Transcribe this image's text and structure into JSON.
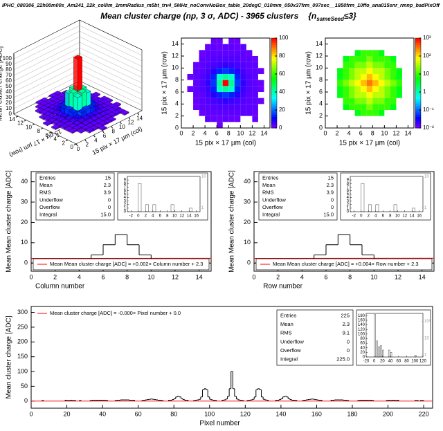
{
  "header": {
    "file": "IPHC_080306_22h00m00s_Am241_22k_collim_1mmRadius_m5bt_trv4_5MHz_noConvNoBox_table_20degC_010mm_050x37frm_097sec__1850frm_10ffo_ana015snr_rmnp_badPixOff",
    "title": "Mean cluster charge (np, 3 σ, ADC) - 3965 clusters",
    "note": "{n",
    "note_sub": "sameSeed",
    "note_end": "≤3}"
  },
  "chart_data": [
    {
      "type": "lego",
      "zlabel": "Mean cluster charge  [ADC]",
      "xlabel": "15 pix × 17 µm  (col)",
      "ylabel": "15 pix × 17 µm  (row)",
      "xlim": [
        0,
        15
      ],
      "ylim": [
        0,
        15
      ],
      "zlim": [
        0,
        110
      ],
      "xticks": [
        0,
        2,
        4,
        6,
        8,
        10,
        12,
        14
      ],
      "yticks": [
        0,
        2,
        4,
        6,
        8,
        10,
        12,
        14
      ],
      "zticks": [
        0,
        10,
        20,
        30,
        40,
        50,
        60,
        70,
        80,
        90,
        100
      ]
    },
    {
      "type": "heatmap",
      "xlabel": "15 pix × 17 µm  (col)",
      "ylabel": "15 pix × 17 µm  (row)",
      "xlim": [
        0,
        15
      ],
      "ylim": [
        0,
        15
      ],
      "xticks": [
        0,
        2,
        4,
        6,
        8,
        10,
        12,
        14
      ],
      "yticks": [
        0,
        2,
        4,
        6,
        8,
        10,
        12,
        14
      ],
      "zlim": [
        0,
        100
      ],
      "zticks": [
        0,
        20,
        40,
        60,
        80,
        100
      ],
      "zlog": false,
      "z": [
        [
          null,
          null,
          null,
          null,
          null,
          null,
          2,
          null,
          null,
          null,
          null,
          null,
          null,
          null,
          null
        ],
        [
          null,
          null,
          null,
          null,
          3,
          2,
          2,
          3,
          2,
          2,
          null,
          null,
          2,
          null,
          null
        ],
        [
          null,
          null,
          null,
          2,
          3,
          3,
          3,
          3,
          3,
          3,
          3,
          3,
          2,
          null,
          null
        ],
        [
          null,
          null,
          2,
          3,
          3,
          4,
          4,
          4,
          4,
          4,
          3,
          3,
          3,
          null,
          null
        ],
        [
          null,
          null,
          2,
          3,
          4,
          5,
          6,
          7,
          6,
          5,
          4,
          3,
          3,
          2,
          null
        ],
        [
          null,
          null,
          3,
          3,
          5,
          8,
          14,
          16,
          14,
          8,
          5,
          3,
          3,
          null,
          null
        ],
        [
          null,
          2,
          3,
          4,
          6,
          14,
          38,
          42,
          38,
          14,
          6,
          4,
          3,
          2,
          null
        ],
        [
          null,
          null,
          3,
          4,
          7,
          16,
          42,
          100,
          42,
          16,
          7,
          4,
          3,
          2,
          null
        ],
        [
          null,
          2,
          3,
          4,
          6,
          14,
          38,
          42,
          38,
          14,
          6,
          4,
          3,
          null,
          null
        ],
        [
          null,
          null,
          3,
          3,
          5,
          8,
          14,
          16,
          14,
          8,
          5,
          3,
          3,
          2,
          null
        ],
        [
          null,
          null,
          2,
          3,
          4,
          5,
          6,
          7,
          6,
          5,
          4,
          3,
          3,
          null,
          null
        ],
        [
          null,
          null,
          null,
          3,
          3,
          4,
          4,
          4,
          4,
          4,
          3,
          3,
          2,
          null,
          null
        ],
        [
          null,
          null,
          null,
          2,
          3,
          3,
          3,
          3,
          3,
          3,
          3,
          2,
          null,
          null,
          null
        ],
        [
          null,
          null,
          null,
          null,
          2,
          3,
          2,
          3,
          3,
          2,
          3,
          null,
          null,
          null,
          null
        ],
        [
          null,
          null,
          null,
          null,
          null,
          2,
          2,
          null,
          2,
          2,
          null,
          null,
          null,
          null,
          null
        ]
      ]
    },
    {
      "type": "heatmap",
      "xlabel": "15 pix × 17 µm  (col)",
      "ylabel": "15 pix × 17 µm  (row)",
      "xlim": [
        0,
        15
      ],
      "ylim": [
        0,
        15
      ],
      "xticks": [
        0,
        2,
        4,
        6,
        8,
        10,
        12,
        14
      ],
      "yticks": [
        0,
        2,
        4,
        6,
        8,
        10,
        12,
        14
      ],
      "zlim": [
        0.01,
        1000
      ],
      "zlog": true,
      "zticks": [
        {
          "value": 0.01,
          "label": "10⁻²"
        },
        {
          "value": 0.1,
          "label": "10⁻¹"
        },
        1,
        10,
        {
          "value": 100,
          "label": "10²"
        },
        {
          "value": 1000,
          "label": "10³"
        }
      ],
      "z": [
        [
          null,
          null,
          null,
          null,
          null,
          null,
          null,
          null,
          null,
          null,
          null,
          null,
          null,
          null,
          null
        ],
        [
          null,
          null,
          null,
          null,
          null,
          null,
          null,
          null,
          null,
          null,
          null,
          null,
          null,
          null,
          null
        ],
        [
          null,
          null,
          null,
          null,
          null,
          5,
          10,
          10,
          10,
          5,
          null,
          null,
          null,
          null,
          null
        ],
        [
          null,
          null,
          null,
          5,
          10,
          10,
          10,
          20,
          10,
          10,
          10,
          5,
          null,
          null,
          null
        ],
        [
          null,
          null,
          null,
          10,
          10,
          20,
          20,
          40,
          20,
          20,
          10,
          10,
          null,
          null,
          null
        ],
        [
          null,
          null,
          5,
          10,
          20,
          40,
          40,
          80,
          40,
          40,
          20,
          10,
          5,
          null,
          null
        ],
        [
          null,
          null,
          5,
          10,
          20,
          40,
          80,
          150,
          80,
          40,
          20,
          10,
          5,
          null,
          null
        ],
        [
          null,
          null,
          10,
          20,
          40,
          80,
          150,
          300,
          150,
          80,
          40,
          20,
          10,
          null,
          null
        ],
        [
          null,
          null,
          5,
          10,
          20,
          40,
          80,
          150,
          80,
          40,
          20,
          10,
          5,
          null,
          null
        ],
        [
          null,
          null,
          5,
          10,
          20,
          40,
          40,
          80,
          40,
          40,
          20,
          10,
          5,
          null,
          null
        ],
        [
          null,
          null,
          null,
          10,
          10,
          20,
          20,
          40,
          20,
          20,
          10,
          10,
          null,
          null,
          null
        ],
        [
          null,
          null,
          null,
          5,
          10,
          10,
          10,
          20,
          10,
          10,
          10,
          5,
          null,
          null,
          null
        ],
        [
          null,
          null,
          null,
          null,
          null,
          5,
          10,
          10,
          10,
          5,
          null,
          null,
          null,
          null,
          null
        ],
        [
          null,
          null,
          null,
          null,
          null,
          null,
          null,
          null,
          null,
          null,
          null,
          null,
          null,
          null,
          null
        ],
        [
          null,
          null,
          null,
          null,
          null,
          null,
          null,
          null,
          null,
          null,
          null,
          null,
          null,
          null,
          null
        ]
      ]
    },
    {
      "type": "histogram",
      "xlabel": "Column number",
      "ylabel": "Mean Mean cluster charge  [ADC]",
      "bins": [
        0,
        1,
        2,
        3,
        4,
        5,
        6,
        7,
        8,
        9,
        10,
        11,
        12,
        13,
        14,
        15
      ],
      "values": [
        0,
        0,
        0,
        0,
        2,
        4,
        9,
        14,
        9,
        4,
        2,
        0,
        0,
        0,
        0
      ],
      "xlim": [
        0,
        15
      ],
      "ylim": [
        -4,
        45
      ],
      "xticks": [
        0,
        2,
        4,
        6,
        8,
        10,
        12,
        14
      ],
      "yticks": [
        0,
        10,
        20,
        30,
        40
      ],
      "color": "#000000",
      "fit": {
        "slope": 0.002,
        "intercept": 2.3,
        "color": "#ff0000",
        "label": "Mean Mean cluster charge  [ADC] = +0.002× Column number + 2.3"
      },
      "stats": [
        {
          "name": "Entries",
          "value": 15
        },
        {
          "name": "Mean",
          "value": 2.3
        },
        {
          "name": "RMS",
          "value": 3.9
        },
        {
          "name": "Underflow",
          "value": 0
        },
        {
          "name": "Overflow",
          "value": 0
        },
        {
          "name": "Integral",
          "value": "15.0"
        }
      ],
      "inset": {
        "bins": [
          -3,
          -2,
          -1,
          0,
          1,
          2,
          3,
          4,
          5,
          6,
          7,
          8,
          9,
          10,
          11,
          12,
          13,
          14,
          15,
          16,
          17
        ],
        "counts": [
          0,
          0,
          0,
          8,
          0,
          2,
          0,
          2,
          0,
          0,
          0,
          0,
          2,
          0,
          0,
          0,
          0,
          1,
          0,
          0
        ],
        "xlim": [
          -3,
          17
        ],
        "ylim": [
          0,
          10
        ],
        "xticks": [
          -2,
          0,
          2,
          4,
          6,
          8,
          10,
          12,
          14,
          16
        ],
        "yticks": [
          0,
          1,
          2,
          3,
          4,
          5,
          6,
          7,
          8,
          9
        ],
        "y2lim": [
          0.75,
          10
        ],
        "y2log": true,
        "y2ticks": [
          1,
          10
        ]
      }
    },
    {
      "type": "histogram",
      "xlabel": "Row number",
      "ylabel": "Mean Mean cluster charge  [ADC]",
      "bins": [
        0,
        1,
        2,
        3,
        4,
        5,
        6,
        7,
        8,
        9,
        10,
        11,
        12,
        13,
        14,
        15
      ],
      "values": [
        0,
        0,
        0,
        0,
        2,
        4,
        9,
        14,
        9,
        4,
        2,
        0,
        0,
        0,
        0
      ],
      "xlim": [
        0,
        15
      ],
      "ylim": [
        -4,
        45
      ],
      "xticks": [
        0,
        2,
        4,
        6,
        8,
        10,
        12,
        14
      ],
      "yticks": [
        0,
        10,
        20,
        30,
        40
      ],
      "color": "#000000",
      "fit": {
        "slope": 0.004,
        "intercept": 2.3,
        "color": "#ff0000",
        "label": "Mean Mean cluster charge  [ADC] = +0.004× Row number + 2.3"
      },
      "stats": [
        {
          "name": "Entries",
          "value": 15
        },
        {
          "name": "Mean",
          "value": 2.3
        },
        {
          "name": "RMS",
          "value": 3.9
        },
        {
          "name": "Underflow",
          "value": 0
        },
        {
          "name": "Overflow",
          "value": 0
        },
        {
          "name": "Integral",
          "value": "15.0"
        }
      ],
      "inset": {
        "bins": [
          -3,
          -2,
          -1,
          0,
          1,
          2,
          3,
          4,
          5,
          6,
          7,
          8,
          9,
          10,
          11,
          12,
          13,
          14,
          15,
          16,
          17
        ],
        "counts": [
          0,
          0,
          0,
          8,
          0,
          2,
          0,
          2,
          0,
          0,
          0,
          0,
          2,
          0,
          0,
          0,
          0,
          1,
          0,
          0
        ],
        "xlim": [
          -3,
          17
        ],
        "ylim": [
          0,
          10
        ],
        "xticks": [
          -2,
          0,
          2,
          4,
          6,
          8,
          10,
          12,
          14,
          16
        ],
        "yticks": [
          0,
          1,
          2,
          3,
          4,
          5,
          6,
          7,
          8,
          9
        ],
        "y2lim": [
          0.75,
          10
        ],
        "y2log": true,
        "y2ticks": [
          1,
          10
        ]
      }
    },
    {
      "type": "histogram",
      "xlabel": "Pixel number",
      "ylabel": "Mean cluster charge  [ADC]",
      "xlim": [
        0,
        225
      ],
      "ylim": [
        -24,
        320
      ],
      "xticks": [
        0,
        20,
        40,
        60,
        80,
        100,
        120,
        140,
        160,
        180,
        200,
        220
      ],
      "yticks": [
        0,
        50,
        100,
        150,
        200,
        250,
        300
      ],
      "color": "#000000",
      "fit": {
        "slope": 0,
        "intercept": 0,
        "color": "#ff0000",
        "label": "Mean cluster charge  [ADC] = -0.000× Pixel number + 0.0"
      },
      "stats": [
        {
          "name": "Entries",
          "value": 225
        },
        {
          "name": "Mean",
          "value": 2.3
        },
        {
          "name": "RMS",
          "value": 9.1
        },
        {
          "name": "Underflow",
          "value": 0
        },
        {
          "name": "Overflow",
          "value": 0
        },
        {
          "name": "Integral",
          "value": "225.0"
        }
      ],
      "inset": {
        "bins": [
          -20,
          -15,
          -10,
          -5,
          0,
          5,
          10,
          15,
          20,
          25,
          30,
          35,
          40,
          45,
          50,
          55,
          60,
          65,
          70,
          75,
          80,
          85,
          90,
          95,
          100,
          105,
          110,
          115,
          120
        ],
        "counts": [
          0,
          0,
          0,
          0,
          185,
          70,
          45,
          50,
          30,
          0,
          0,
          30,
          20,
          0,
          0,
          0,
          0,
          0,
          0,
          0,
          0,
          0,
          0,
          0,
          8,
          0,
          0,
          0
        ],
        "xlim": [
          -20,
          120
        ],
        "ylim": [
          0,
          190
        ],
        "xticks": [
          -20,
          0,
          20,
          40,
          60,
          80,
          100,
          120
        ],
        "yticks": [
          0,
          20,
          40,
          60,
          80,
          100,
          120,
          140,
          160,
          180
        ],
        "y2lim": [
          0.75,
          300
        ],
        "y2log": true,
        "y2ticks": [
          1,
          10,
          {
            "value": 100,
            "label": "10²"
          }
        ]
      }
    }
  ]
}
